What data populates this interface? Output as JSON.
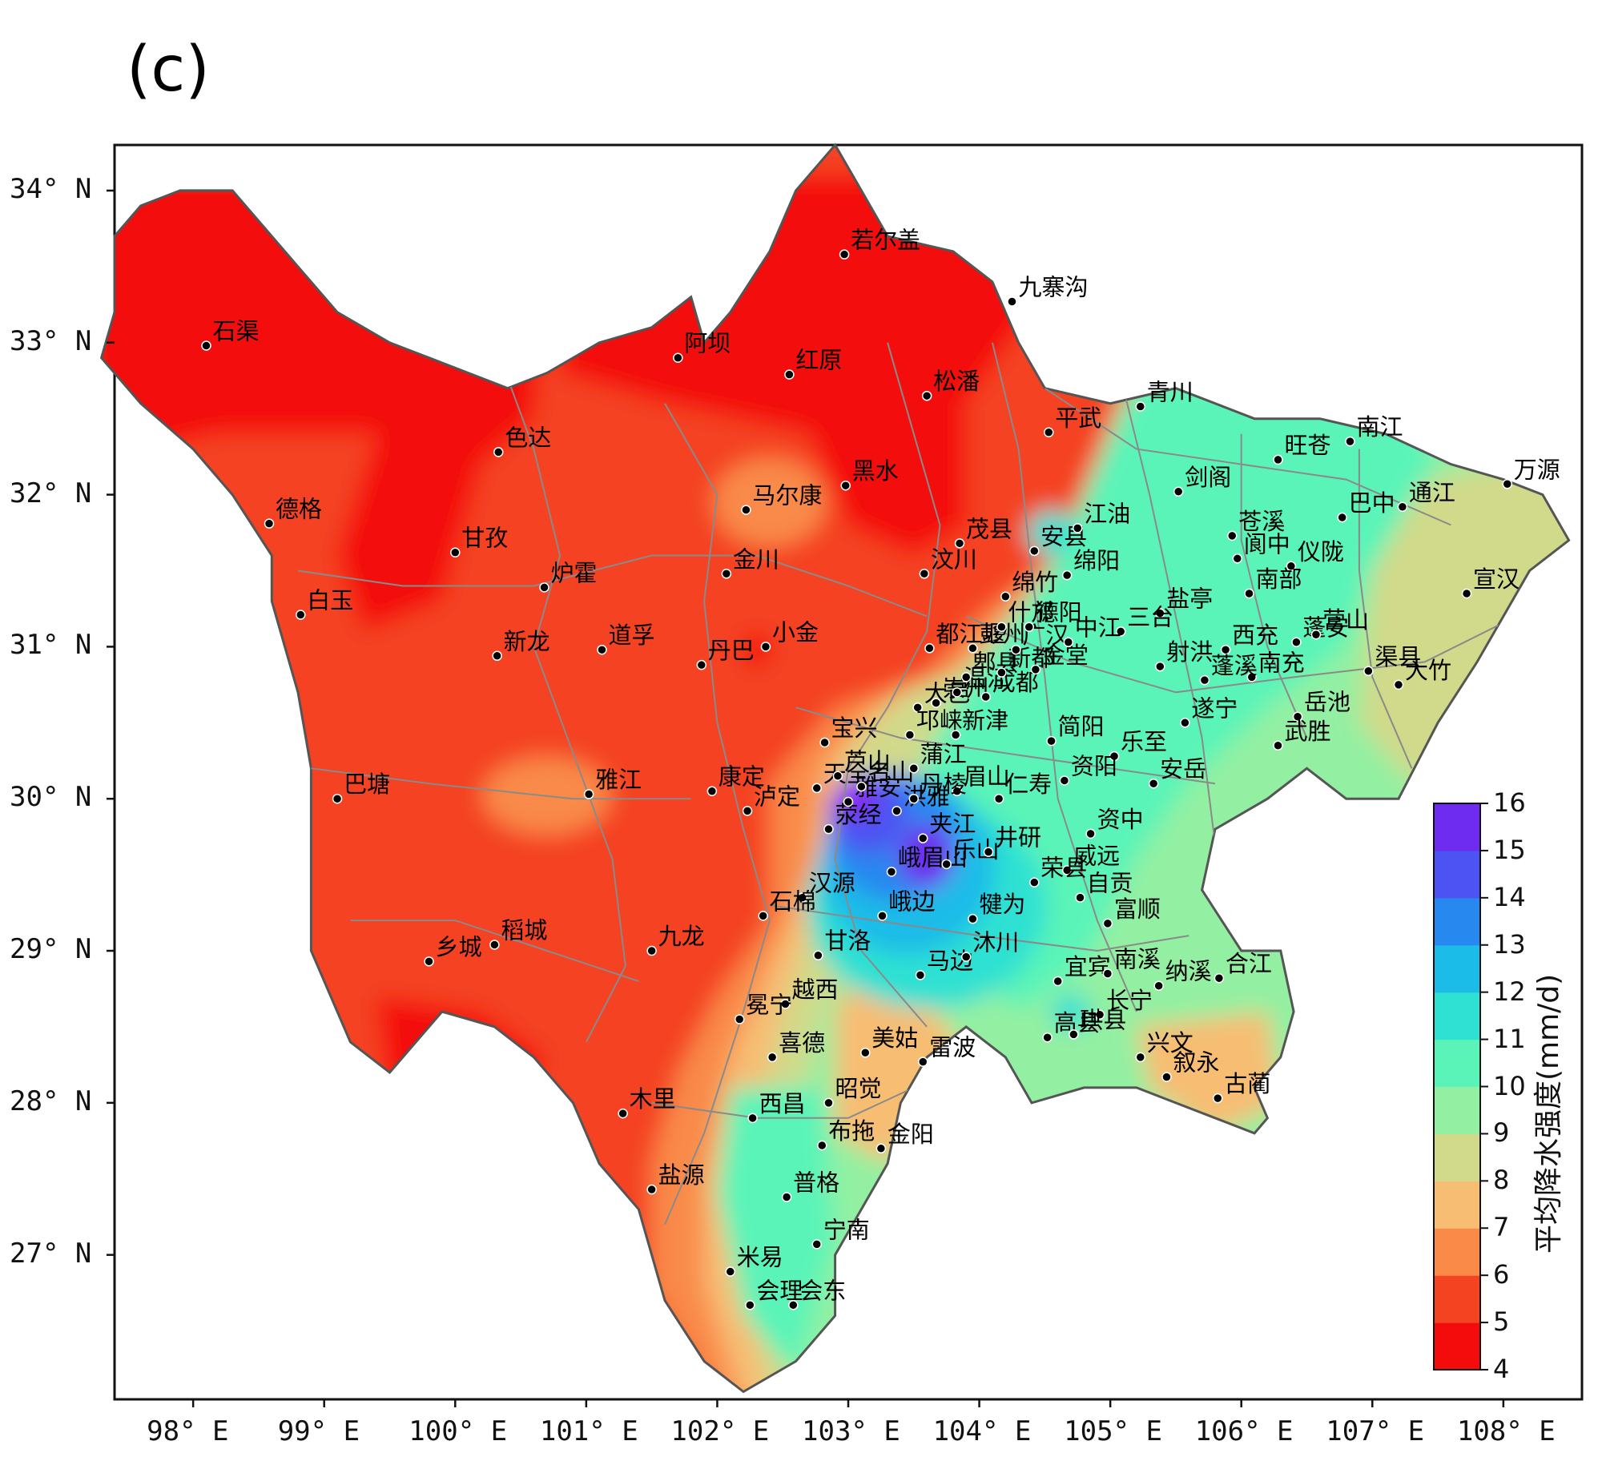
{
  "panel_label": "(c)",
  "map": {
    "lon_range": [
      97.4,
      108.6
    ],
    "lat_range": [
      26.05,
      34.3
    ],
    "lon_ticks": [
      {
        "value": 98,
        "label": "98° E"
      },
      {
        "value": 99,
        "label": "99° E"
      },
      {
        "value": 100,
        "label": "100° E"
      },
      {
        "value": 101,
        "label": "101° E"
      },
      {
        "value": 102,
        "label": "102° E"
      },
      {
        "value": 103,
        "label": "103° E"
      },
      {
        "value": 104,
        "label": "104° E"
      },
      {
        "value": 105,
        "label": "105° E"
      },
      {
        "value": 106,
        "label": "106° E"
      },
      {
        "value": 107,
        "label": "107° E"
      },
      {
        "value": 108,
        "label": "108° E"
      }
    ],
    "lat_ticks": [
      {
        "value": 34,
        "label": "34° N"
      },
      {
        "value": 33,
        "label": "33° N"
      },
      {
        "value": 32,
        "label": "32° N"
      },
      {
        "value": 31,
        "label": "31° N"
      },
      {
        "value": 30,
        "label": "30° N"
      },
      {
        "value": 29,
        "label": "29° N"
      },
      {
        "value": 28,
        "label": "28° N"
      },
      {
        "value": 27,
        "label": "27° N"
      }
    ],
    "colors": {
      "c4": "#f40c0c",
      "c5": "#f44320",
      "c6": "#f98a48",
      "c7": "#f7bd73",
      "c8": "#d1d98a",
      "c9": "#93f0a2",
      "c10": "#5af4b8",
      "c11": "#2fe1d2",
      "c12": "#1cbce8",
      "c13": "#2788f0",
      "c14": "#4d52f2",
      "c15": "#6d2cf0",
      "c16": "#8a14f4",
      "border": "#555555",
      "inner_border": "#8a8a8a"
    },
    "boundary": [
      [
        97.4,
        33.7
      ],
      [
        97.6,
        33.9
      ],
      [
        97.9,
        34.0
      ],
      [
        98.3,
        34.0
      ],
      [
        98.7,
        33.6
      ],
      [
        99.1,
        33.2
      ],
      [
        99.5,
        33.0
      ],
      [
        99.8,
        32.9
      ],
      [
        100.1,
        32.8
      ],
      [
        100.4,
        32.7
      ],
      [
        100.7,
        32.8
      ],
      [
        101.1,
        33.0
      ],
      [
        101.5,
        33.1
      ],
      [
        101.8,
        33.3
      ],
      [
        101.9,
        33.0
      ],
      [
        102.1,
        33.2
      ],
      [
        102.4,
        33.6
      ],
      [
        102.6,
        34.0
      ],
      [
        102.9,
        34.3
      ],
      [
        103.1,
        34.0
      ],
      [
        103.3,
        33.7
      ],
      [
        103.8,
        33.6
      ],
      [
        104.1,
        33.4
      ],
      [
        104.3,
        33.0
      ],
      [
        104.5,
        32.7
      ],
      [
        105.0,
        32.6
      ],
      [
        105.5,
        32.7
      ],
      [
        106.1,
        32.5
      ],
      [
        106.6,
        32.5
      ],
      [
        107.1,
        32.4
      ],
      [
        107.6,
        32.2
      ],
      [
        108.0,
        32.1
      ],
      [
        108.3,
        32.0
      ],
      [
        108.5,
        31.7
      ],
      [
        108.2,
        31.5
      ],
      [
        108.0,
        31.2
      ],
      [
        107.8,
        30.9
      ],
      [
        107.5,
        30.5
      ],
      [
        107.2,
        30.0
      ],
      [
        106.8,
        30.0
      ],
      [
        106.5,
        30.2
      ],
      [
        106.2,
        30.0
      ],
      [
        105.8,
        29.8
      ],
      [
        105.7,
        29.4
      ],
      [
        106.0,
        29.0
      ],
      [
        106.3,
        29.0
      ],
      [
        106.4,
        28.6
      ],
      [
        106.3,
        28.3
      ],
      [
        106.1,
        28.1
      ],
      [
        106.2,
        27.9
      ],
      [
        106.1,
        27.8
      ],
      [
        105.8,
        27.9
      ],
      [
        105.5,
        28.0
      ],
      [
        105.2,
        28.1
      ],
      [
        104.8,
        28.1
      ],
      [
        104.4,
        28.0
      ],
      [
        104.2,
        28.3
      ],
      [
        103.9,
        28.5
      ],
      [
        103.6,
        28.3
      ],
      [
        103.4,
        28.0
      ],
      [
        103.3,
        27.6
      ],
      [
        102.9,
        27.0
      ],
      [
        102.9,
        26.6
      ],
      [
        102.6,
        26.3
      ],
      [
        102.2,
        26.1
      ],
      [
        101.9,
        26.3
      ],
      [
        101.6,
        26.7
      ],
      [
        101.4,
        27.3
      ],
      [
        101.1,
        27.6
      ],
      [
        100.9,
        28.0
      ],
      [
        100.6,
        28.3
      ],
      [
        100.3,
        28.5
      ],
      [
        99.9,
        28.6
      ],
      [
        99.5,
        28.2
      ],
      [
        99.2,
        28.4
      ],
      [
        98.9,
        29.0
      ],
      [
        98.9,
        29.5
      ],
      [
        98.9,
        30.2
      ],
      [
        98.8,
        30.7
      ],
      [
        98.7,
        31.0
      ],
      [
        98.6,
        31.3
      ],
      [
        98.6,
        31.6
      ],
      [
        98.3,
        32.0
      ],
      [
        98.0,
        32.3
      ],
      [
        97.6,
        32.6
      ],
      [
        97.3,
        32.9
      ],
      [
        97.4,
        33.2
      ]
    ],
    "stations": [
      {
        "name": "石渠",
        "lon": 98.1,
        "lat": 32.98
      },
      {
        "name": "色达",
        "lon": 100.33,
        "lat": 32.28
      },
      {
        "name": "德格",
        "lon": 98.58,
        "lat": 31.81
      },
      {
        "name": "甘孜",
        "lon": 100.0,
        "lat": 31.62
      },
      {
        "name": "白玉",
        "lon": 98.82,
        "lat": 31.21
      },
      {
        "name": "炉霍",
        "lon": 100.68,
        "lat": 31.39
      },
      {
        "name": "新龙",
        "lon": 100.32,
        "lat": 30.94
      },
      {
        "name": "道孚",
        "lon": 101.12,
        "lat": 30.98
      },
      {
        "name": "巴塘",
        "lon": 99.1,
        "lat": 30.0
      },
      {
        "name": "雅江",
        "lon": 101.02,
        "lat": 30.03
      },
      {
        "name": "乡城",
        "lon": 99.8,
        "lat": 28.93
      },
      {
        "name": "稻城",
        "lon": 100.3,
        "lat": 29.04
      },
      {
        "name": "九龙",
        "lon": 101.5,
        "lat": 29.0
      },
      {
        "name": "木里",
        "lon": 101.28,
        "lat": 27.93
      },
      {
        "name": "盐源",
        "lon": 101.5,
        "lat": 27.43
      },
      {
        "name": "阿坝",
        "lon": 101.7,
        "lat": 32.9
      },
      {
        "name": "红原",
        "lon": 102.55,
        "lat": 32.79
      },
      {
        "name": "若尔盖",
        "lon": 102.97,
        "lat": 33.58
      },
      {
        "name": "九寨沟",
        "lon": 104.25,
        "lat": 33.27
      },
      {
        "name": "松潘",
        "lon": 103.6,
        "lat": 32.65
      },
      {
        "name": "黑水",
        "lon": 102.98,
        "lat": 32.06
      },
      {
        "name": "马尔康",
        "lon": 102.22,
        "lat": 31.9
      },
      {
        "name": "金川",
        "lon": 102.07,
        "lat": 31.48
      },
      {
        "name": "小金",
        "lon": 102.37,
        "lat": 31.0
      },
      {
        "name": "丹巴",
        "lon": 101.88,
        "lat": 30.88
      },
      {
        "name": "茂县",
        "lon": 103.85,
        "lat": 31.68
      },
      {
        "name": "汶川",
        "lon": 103.58,
        "lat": 31.48
      },
      {
        "name": "康定",
        "lon": 101.96,
        "lat": 30.05
      },
      {
        "name": "泸定",
        "lon": 102.23,
        "lat": 29.92
      },
      {
        "name": "宝兴",
        "lon": 102.82,
        "lat": 30.37
      },
      {
        "name": "天全",
        "lon": 102.76,
        "lat": 30.07
      },
      {
        "name": "芦山",
        "lon": 102.92,
        "lat": 30.15
      },
      {
        "name": "荥经",
        "lon": 102.85,
        "lat": 29.8
      },
      {
        "name": "雅安",
        "lon": 103.0,
        "lat": 29.98
      },
      {
        "name": "名山",
        "lon": 103.1,
        "lat": 30.08
      },
      {
        "name": "洪雅",
        "lon": 103.37,
        "lat": 29.92
      },
      {
        "name": "汉源",
        "lon": 102.65,
        "lat": 29.35
      },
      {
        "name": "石棉",
        "lon": 102.35,
        "lat": 29.23
      },
      {
        "name": "甘洛",
        "lon": 102.77,
        "lat": 28.97
      },
      {
        "name": "越西",
        "lon": 102.52,
        "lat": 28.65
      },
      {
        "name": "冕宁",
        "lon": 102.17,
        "lat": 28.55
      },
      {
        "name": "喜德",
        "lon": 102.42,
        "lat": 28.3
      },
      {
        "name": "美姑",
        "lon": 103.13,
        "lat": 28.33
      },
      {
        "name": "雷波",
        "lon": 103.57,
        "lat": 28.27
      },
      {
        "name": "昭觉",
        "lon": 102.85,
        "lat": 28.0
      },
      {
        "name": "西昌",
        "lon": 102.27,
        "lat": 27.9
      },
      {
        "name": "布拖",
        "lon": 102.8,
        "lat": 27.72
      },
      {
        "name": "金阳",
        "lon": 103.25,
        "lat": 27.7
      },
      {
        "name": "普格",
        "lon": 102.53,
        "lat": 27.38
      },
      {
        "name": "宁南",
        "lon": 102.76,
        "lat": 27.07
      },
      {
        "name": "米易",
        "lon": 102.1,
        "lat": 26.89
      },
      {
        "name": "会理",
        "lon": 102.25,
        "lat": 26.67
      },
      {
        "name": "会东",
        "lon": 102.58,
        "lat": 26.67
      },
      {
        "name": "峨边",
        "lon": 103.26,
        "lat": 29.23
      },
      {
        "name": "马边",
        "lon": 103.55,
        "lat": 28.84
      },
      {
        "name": "沐川",
        "lon": 103.9,
        "lat": 28.96
      },
      {
        "name": "峨眉山",
        "lon": 103.33,
        "lat": 29.52
      },
      {
        "name": "乐山",
        "lon": 103.75,
        "lat": 29.57
      },
      {
        "name": "夹江",
        "lon": 103.57,
        "lat": 29.74
      },
      {
        "name": "犍为",
        "lon": 103.95,
        "lat": 29.21
      },
      {
        "name": "眉山",
        "lon": 103.83,
        "lat": 30.05
      },
      {
        "name": "丹棱",
        "lon": 103.5,
        "lat": 30.0
      },
      {
        "name": "井研",
        "lon": 104.07,
        "lat": 29.65
      },
      {
        "name": "仁寿",
        "lon": 104.15,
        "lat": 30.0
      },
      {
        "name": "蒲江",
        "lon": 103.5,
        "lat": 30.2
      },
      {
        "name": "大邑",
        "lon": 103.53,
        "lat": 30.6
      },
      {
        "name": "邛崃",
        "lon": 103.47,
        "lat": 30.42
      },
      {
        "name": "新津",
        "lon": 103.82,
        "lat": 30.42
      },
      {
        "name": "崇州",
        "lon": 103.67,
        "lat": 30.63
      },
      {
        "name": "温江",
        "lon": 103.83,
        "lat": 30.7
      },
      {
        "name": "都江堰",
        "lon": 103.62,
        "lat": 30.99
      },
      {
        "name": "郫县",
        "lon": 103.9,
        "lat": 30.8
      },
      {
        "name": "成都",
        "lon": 104.05,
        "lat": 30.67
      },
      {
        "name": "新都",
        "lon": 104.17,
        "lat": 30.83
      },
      {
        "name": "彭州",
        "lon": 103.95,
        "lat": 30.99
      },
      {
        "name": "金堂",
        "lon": 104.43,
        "lat": 30.85
      },
      {
        "name": "广汉",
        "lon": 104.28,
        "lat": 30.98
      },
      {
        "name": "什邡",
        "lon": 104.17,
        "lat": 31.13
      },
      {
        "name": "德阳",
        "lon": 104.38,
        "lat": 31.13
      },
      {
        "name": "绵竹",
        "lon": 104.2,
        "lat": 31.33
      },
      {
        "name": "安县",
        "lon": 104.42,
        "lat": 31.63
      },
      {
        "name": "绵阳",
        "lon": 104.67,
        "lat": 31.47
      },
      {
        "name": "江油",
        "lon": 104.75,
        "lat": 31.78
      },
      {
        "name": "平武",
        "lon": 104.53,
        "lat": 32.41
      },
      {
        "name": "青川",
        "lon": 105.23,
        "lat": 32.58
      },
      {
        "name": "剑阁",
        "lon": 105.52,
        "lat": 32.02
      },
      {
        "name": "旺苍",
        "lon": 106.28,
        "lat": 32.23
      },
      {
        "name": "南江",
        "lon": 106.83,
        "lat": 32.35
      },
      {
        "name": "万源",
        "lon": 108.03,
        "lat": 32.07
      },
      {
        "name": "通江",
        "lon": 107.23,
        "lat": 31.92
      },
      {
        "name": "巴中",
        "lon": 106.77,
        "lat": 31.85
      },
      {
        "name": "苍溪",
        "lon": 105.93,
        "lat": 31.73
      },
      {
        "name": "阆中",
        "lon": 105.97,
        "lat": 31.58
      },
      {
        "name": "仪陇",
        "lon": 106.38,
        "lat": 31.53
      },
      {
        "name": "南部",
        "lon": 106.06,
        "lat": 31.35
      },
      {
        "name": "宣汉",
        "lon": 107.72,
        "lat": 31.35
      },
      {
        "name": "盐亭",
        "lon": 105.38,
        "lat": 31.22
      },
      {
        "name": "三台",
        "lon": 105.08,
        "lat": 31.1
      },
      {
        "name": "中江",
        "lon": 104.68,
        "lat": 31.03
      },
      {
        "name": "西充",
        "lon": 105.88,
        "lat": 30.98
      },
      {
        "name": "蓬安",
        "lon": 106.42,
        "lat": 31.03
      },
      {
        "name": "营山",
        "lon": 106.57,
        "lat": 31.08
      },
      {
        "name": "射洪",
        "lon": 105.38,
        "lat": 30.87
      },
      {
        "name": "南充",
        "lon": 106.08,
        "lat": 30.8
      },
      {
        "name": "蓬溪",
        "lon": 105.72,
        "lat": 30.78
      },
      {
        "name": "渠县",
        "lon": 106.97,
        "lat": 30.84
      },
      {
        "name": "大竹",
        "lon": 107.2,
        "lat": 30.75
      },
      {
        "name": "遂宁",
        "lon": 105.57,
        "lat": 30.5
      },
      {
        "name": "岳池",
        "lon": 106.43,
        "lat": 30.54
      },
      {
        "name": "武胜",
        "lon": 106.28,
        "lat": 30.35
      },
      {
        "name": "简阳",
        "lon": 104.55,
        "lat": 30.38
      },
      {
        "name": "乐至",
        "lon": 105.03,
        "lat": 30.28
      },
      {
        "name": "安岳",
        "lon": 105.33,
        "lat": 30.1
      },
      {
        "name": "资阳",
        "lon": 104.65,
        "lat": 30.12
      },
      {
        "name": "资中",
        "lon": 104.85,
        "lat": 29.77
      },
      {
        "name": "威远",
        "lon": 104.67,
        "lat": 29.53
      },
      {
        "name": "荣县",
        "lon": 104.42,
        "lat": 29.45
      },
      {
        "name": "自贡",
        "lon": 104.77,
        "lat": 29.35
      },
      {
        "name": "富顺",
        "lon": 104.98,
        "lat": 29.18
      },
      {
        "name": "宜宾",
        "lon": 104.6,
        "lat": 28.8
      },
      {
        "name": "南溪",
        "lon": 104.98,
        "lat": 28.85
      },
      {
        "name": "纳溪",
        "lon": 105.37,
        "lat": 28.77
      },
      {
        "name": "合江",
        "lon": 105.83,
        "lat": 28.82
      },
      {
        "name": "长宁",
        "lon": 104.92,
        "lat": 28.58
      },
      {
        "name": "高县",
        "lon": 104.52,
        "lat": 28.43
      },
      {
        "name": "珙县",
        "lon": 104.72,
        "lat": 28.45
      },
      {
        "name": "兴文",
        "lon": 105.23,
        "lat": 28.3
      },
      {
        "name": "叙永",
        "lon": 105.43,
        "lat": 28.17
      },
      {
        "name": "古蔺",
        "lon": 105.82,
        "lat": 28.03
      }
    ]
  },
  "colorbar": {
    "title": "平均降水强度(mm/d)",
    "ticks": [
      "4",
      "5",
      "6",
      "7",
      "8",
      "9",
      "10",
      "11",
      "12",
      "13",
      "14",
      "15",
      "16"
    ]
  }
}
